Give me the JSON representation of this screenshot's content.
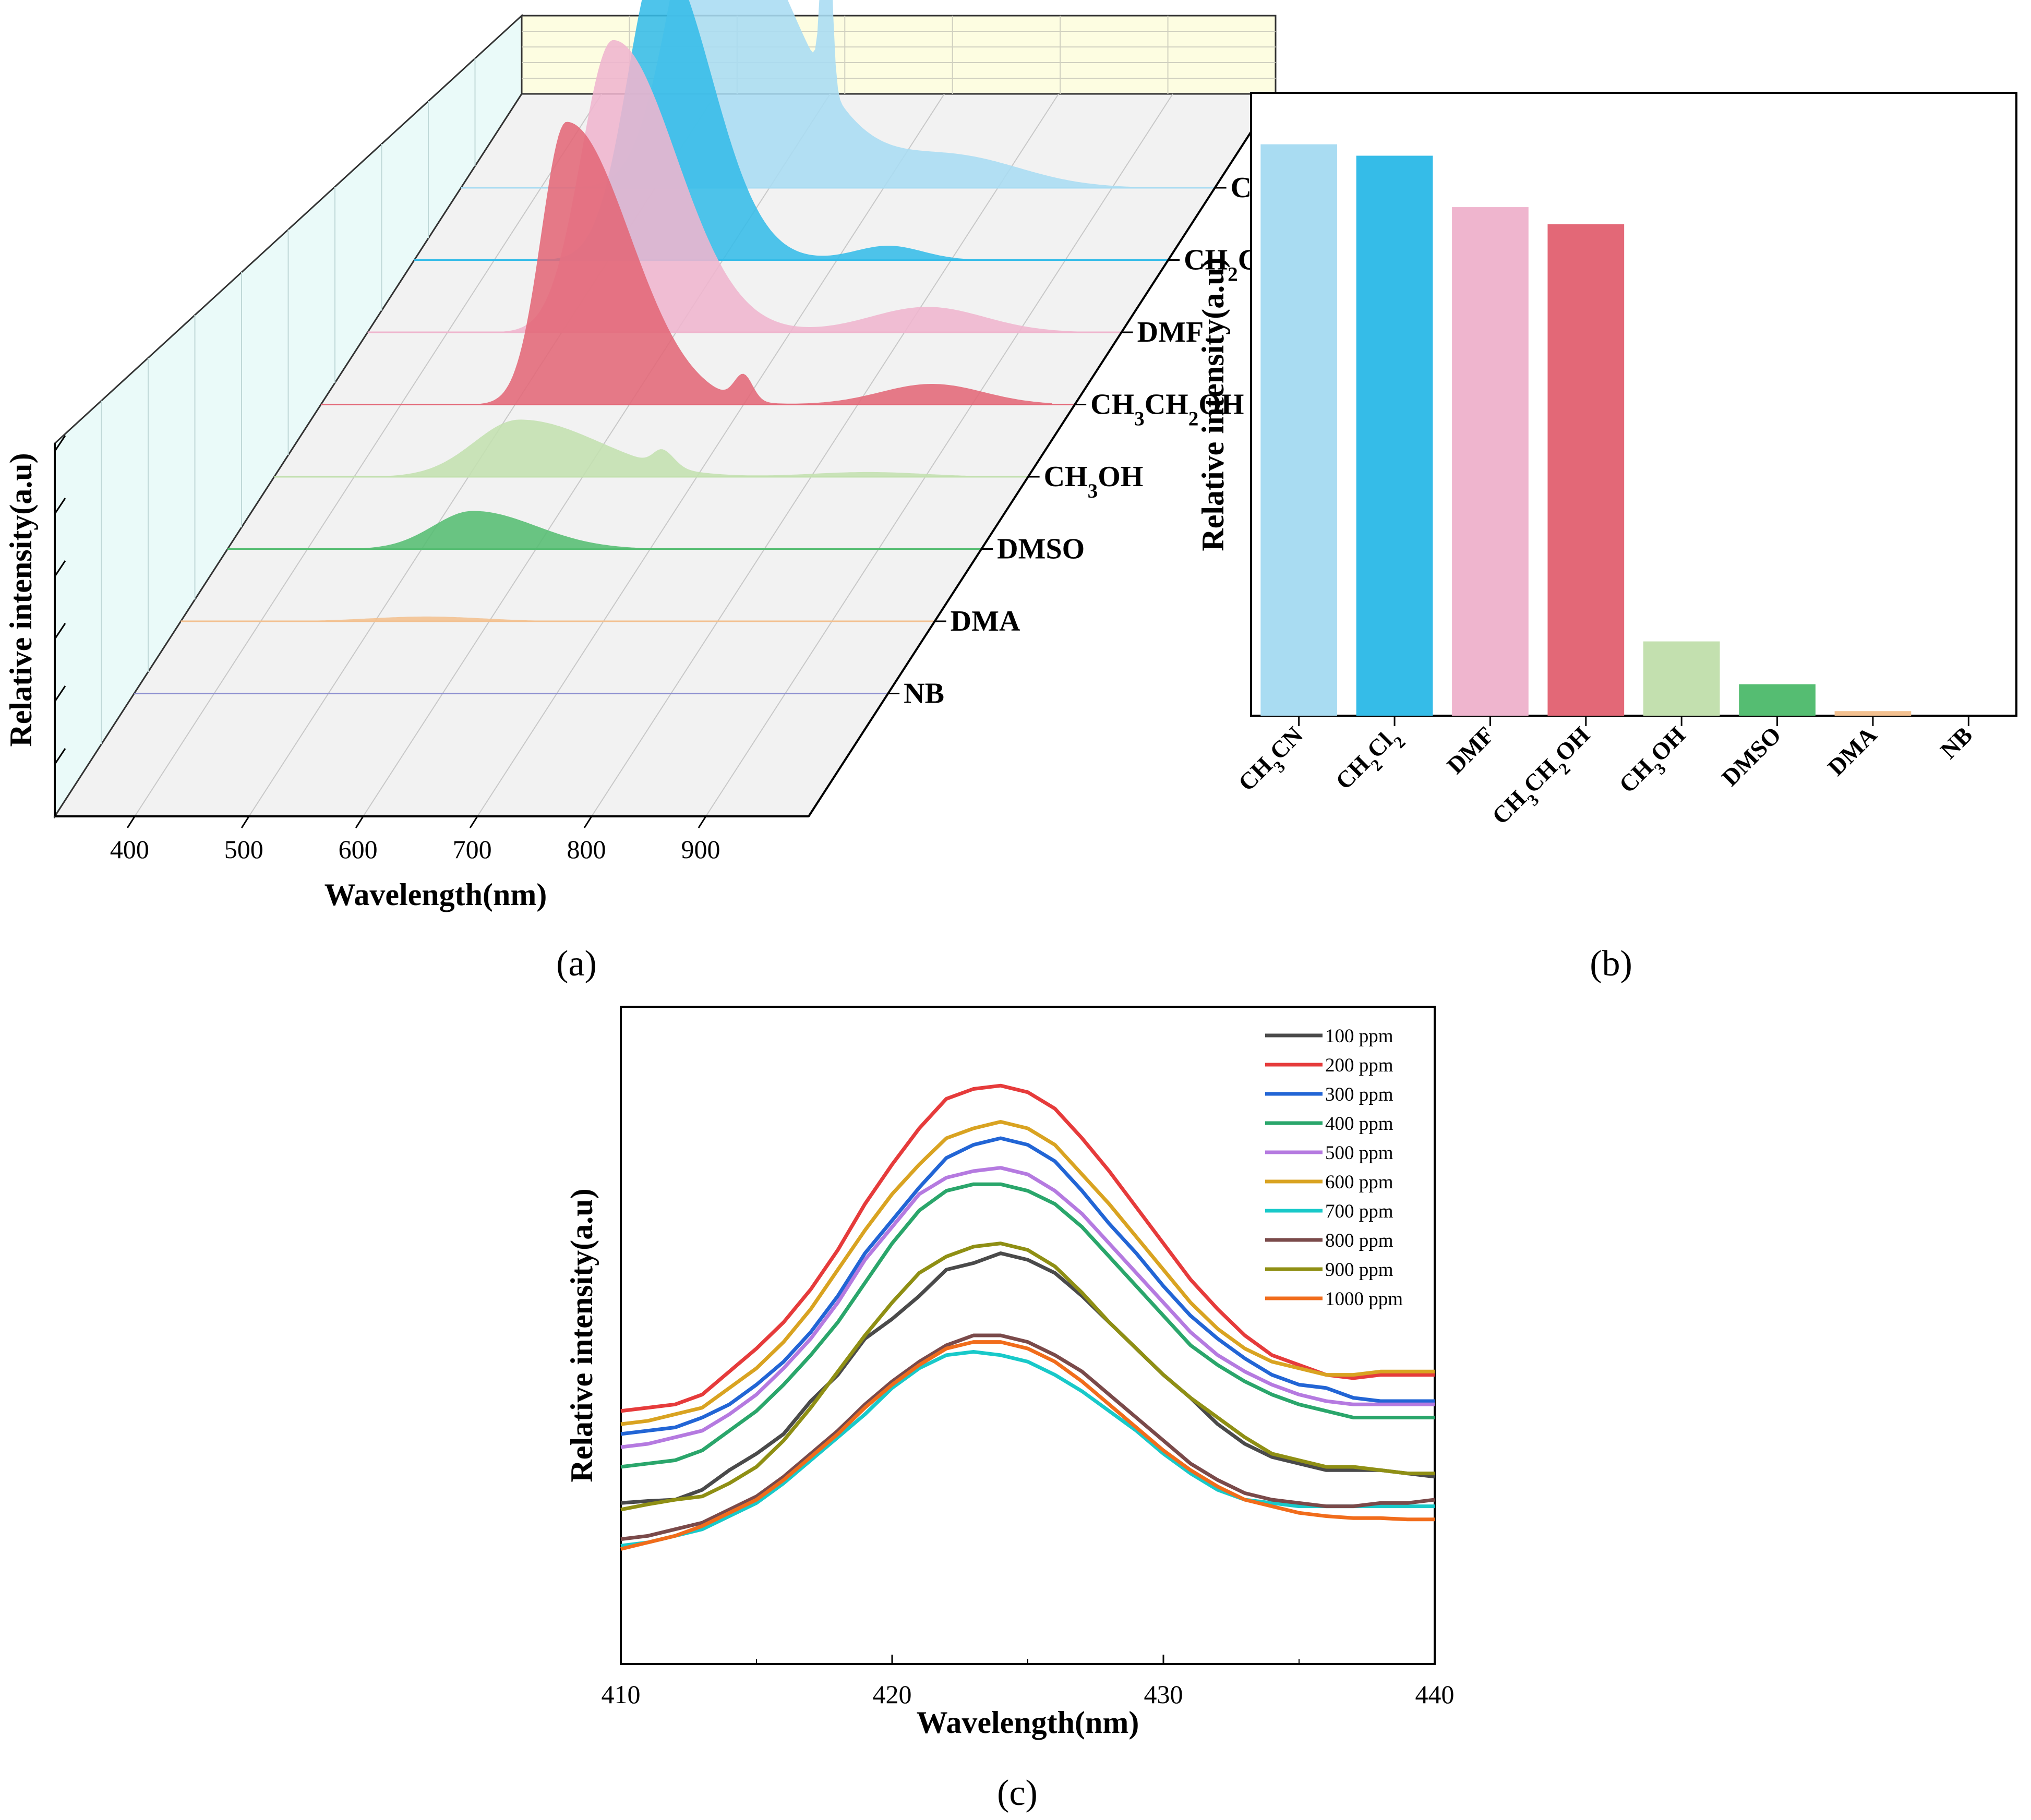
{
  "colors": {
    "CH3CN": "#a9dcf2",
    "CH2Cl2": "#35bce8",
    "DMF": "#efb5ce",
    "CH3CH2OH": "#e36877",
    "CH3OH": "#c3e0af",
    "DMSO": "#55bd72",
    "DMA": "#f3c08f",
    "NB": "#8c8fd0",
    "wall_back": "#fdfde1",
    "wall_side": "#eafaf9"
  },
  "panels": {
    "a": "(a)",
    "b": "(b)",
    "c": "(c)"
  },
  "chart_data": [
    {
      "type": "area",
      "id": "a",
      "xlabel": "Wavelength(nm)",
      "ylabel": "Relative intensity(a.u)",
      "x_ticks": [
        400,
        500,
        600,
        700,
        800,
        900
      ],
      "xlim": [
        330,
        990
      ],
      "series": [
        {
          "name": "CH3CN",
          "label_base": "CH",
          "label_parts": [
            [
              "CH",
              "3",
              "CN"
            ]
          ],
          "peaks": [
            [
              545,
              0.98,
              32,
              70
            ],
            [
              650,
              0.72,
              4,
              4
            ],
            [
              760,
              0.1,
              60,
              60
            ]
          ]
        },
        {
          "name": "CH2Cl2",
          "label_parts": [
            [
              "CH",
              "2",
              "Cl",
              "2"
            ]
          ],
          "peaks": [
            [
              545,
              0.96,
              28,
              45
            ],
            [
              745,
              0.045,
              30,
              30
            ]
          ]
        },
        {
          "name": "DMF",
          "label_parts": [
            [
              "DMF"
            ]
          ],
          "peaks": [
            [
              545,
              0.92,
              28,
              55
            ],
            [
              820,
              0.08,
              50,
              50
            ]
          ]
        },
        {
          "name": "CH3CH2OH",
          "label_parts": [
            [
              "CH",
              "3",
              "CH",
              "2",
              "OH"
            ]
          ],
          "peaks": [
            [
              545,
              0.89,
              22,
              55
            ],
            [
              700,
              0.08,
              8,
              8
            ],
            [
              865,
              0.065,
              45,
              45
            ]
          ]
        },
        {
          "name": "CH3OH",
          "label_parts": [
            [
              "CH",
              "3",
              "OH"
            ]
          ],
          "peaks": [
            [
              545,
              0.18,
              40,
              70
            ],
            [
              670,
              0.05,
              8,
              10
            ],
            [
              850,
              0.015,
              50,
              50
            ]
          ]
        },
        {
          "name": "DMSO",
          "label_parts": [
            [
              "DMSO"
            ]
          ],
          "peaks": [
            [
              545,
              0.12,
              35,
              55
            ]
          ]
        },
        {
          "name": "DMA",
          "label_parts": [
            [
              "DMA"
            ]
          ],
          "peaks": [
            [
              545,
              0.015,
              50,
              50
            ]
          ]
        },
        {
          "name": "NB",
          "label_parts": [
            [
              "NB"
            ]
          ],
          "peaks": []
        }
      ]
    },
    {
      "type": "bar",
      "id": "b",
      "ylabel": "Relative intensity(a.u)",
      "categories": [
        "CH3CN",
        "CH2Cl2",
        "DMF",
        "CH3CH2OH",
        "CH3OH",
        "DMSO",
        "DMA",
        "NB"
      ],
      "category_parts": [
        [
          "CH",
          "3",
          "CN"
        ],
        [
          "CH",
          "2",
          "Cl",
          "2"
        ],
        [
          "DMF"
        ],
        [
          "CH",
          "3",
          "CH",
          "2",
          "OH"
        ],
        [
          "CH",
          "3",
          "OH"
        ],
        [
          "DMSO"
        ],
        [
          "DMA"
        ],
        [
          "NB"
        ]
      ],
      "values": [
        1.0,
        0.98,
        0.89,
        0.86,
        0.13,
        0.055,
        0.008,
        0.0
      ],
      "ylim": [
        0,
        1.09
      ]
    },
    {
      "type": "line",
      "id": "c",
      "xlabel": "Wavelength(nm)",
      "ylabel": "Relative intensity(a.u)",
      "x_ticks": [
        410,
        420,
        430,
        440
      ],
      "xlim": [
        410,
        440
      ],
      "ylim": [
        0,
        1
      ],
      "x": [
        410,
        411,
        412,
        413,
        414,
        415,
        416,
        417,
        418,
        419,
        420,
        421,
        422,
        423,
        424,
        425,
        426,
        427,
        428,
        429,
        430,
        431,
        432,
        433,
        434,
        435,
        436,
        437,
        438,
        439,
        440
      ],
      "series": [
        {
          "name": "100 ppm",
          "color": "#4a4a4a",
          "values": [
            0.245,
            0.248,
            0.25,
            0.265,
            0.295,
            0.32,
            0.35,
            0.4,
            0.44,
            0.495,
            0.525,
            0.56,
            0.6,
            0.61,
            0.625,
            0.615,
            0.595,
            0.56,
            0.52,
            0.48,
            0.44,
            0.405,
            0.365,
            0.335,
            0.315,
            0.305,
            0.295,
            0.295,
            0.295,
            0.29,
            0.285
          ]
        },
        {
          "name": "200 ppm",
          "color": "#e63b3b",
          "values": [
            0.385,
            0.39,
            0.395,
            0.41,
            0.445,
            0.48,
            0.52,
            0.57,
            0.63,
            0.7,
            0.76,
            0.815,
            0.86,
            0.875,
            0.88,
            0.87,
            0.845,
            0.8,
            0.75,
            0.695,
            0.64,
            0.585,
            0.54,
            0.5,
            0.47,
            0.455,
            0.44,
            0.435,
            0.44,
            0.44,
            0.44
          ]
        },
        {
          "name": "300 ppm",
          "color": "#2265d5",
          "values": [
            0.35,
            0.355,
            0.36,
            0.375,
            0.395,
            0.425,
            0.46,
            0.505,
            0.56,
            0.625,
            0.675,
            0.725,
            0.77,
            0.79,
            0.8,
            0.79,
            0.765,
            0.72,
            0.67,
            0.625,
            0.575,
            0.53,
            0.495,
            0.465,
            0.44,
            0.425,
            0.42,
            0.405,
            0.4,
            0.4,
            0.4
          ]
        },
        {
          "name": "400 ppm",
          "color": "#2aa66b",
          "values": [
            0.3,
            0.305,
            0.31,
            0.325,
            0.355,
            0.385,
            0.425,
            0.47,
            0.52,
            0.58,
            0.64,
            0.69,
            0.72,
            0.73,
            0.73,
            0.72,
            0.7,
            0.665,
            0.62,
            0.575,
            0.53,
            0.485,
            0.455,
            0.43,
            0.41,
            0.395,
            0.385,
            0.375,
            0.375,
            0.375,
            0.375
          ]
        },
        {
          "name": "500 ppm",
          "color": "#b57ae0",
          "values": [
            0.33,
            0.335,
            0.345,
            0.355,
            0.38,
            0.41,
            0.45,
            0.495,
            0.55,
            0.615,
            0.665,
            0.715,
            0.74,
            0.75,
            0.755,
            0.745,
            0.72,
            0.685,
            0.64,
            0.595,
            0.55,
            0.505,
            0.47,
            0.445,
            0.425,
            0.41,
            0.4,
            0.395,
            0.395,
            0.395,
            0.395
          ]
        },
        {
          "name": "600 ppm",
          "color": "#d9a321",
          "values": [
            0.365,
            0.37,
            0.38,
            0.39,
            0.42,
            0.45,
            0.49,
            0.54,
            0.6,
            0.66,
            0.715,
            0.76,
            0.8,
            0.815,
            0.825,
            0.815,
            0.79,
            0.745,
            0.7,
            0.65,
            0.6,
            0.55,
            0.51,
            0.48,
            0.46,
            0.45,
            0.44,
            0.44,
            0.445,
            0.445,
            0.445
          ]
        },
        {
          "name": "700 ppm",
          "color": "#18c9c9",
          "values": [
            0.18,
            0.185,
            0.195,
            0.205,
            0.225,
            0.245,
            0.275,
            0.31,
            0.345,
            0.38,
            0.42,
            0.45,
            0.47,
            0.475,
            0.47,
            0.46,
            0.44,
            0.415,
            0.385,
            0.355,
            0.32,
            0.29,
            0.265,
            0.25,
            0.245,
            0.24,
            0.24,
            0.24,
            0.24,
            0.24,
            0.24
          ]
        },
        {
          "name": "800 ppm",
          "color": "#7a4a4a",
          "values": [
            0.19,
            0.195,
            0.205,
            0.215,
            0.235,
            0.255,
            0.285,
            0.32,
            0.355,
            0.395,
            0.43,
            0.46,
            0.485,
            0.5,
            0.5,
            0.49,
            0.47,
            0.445,
            0.41,
            0.375,
            0.34,
            0.305,
            0.28,
            0.26,
            0.25,
            0.245,
            0.24,
            0.24,
            0.245,
            0.245,
            0.25
          ]
        },
        {
          "name": "900 ppm",
          "color": "#8f8f14",
          "values": [
            0.235,
            0.243,
            0.25,
            0.255,
            0.275,
            0.3,
            0.34,
            0.39,
            0.445,
            0.5,
            0.55,
            0.595,
            0.62,
            0.635,
            0.64,
            0.63,
            0.605,
            0.565,
            0.52,
            0.48,
            0.44,
            0.405,
            0.375,
            0.345,
            0.32,
            0.31,
            0.3,
            0.3,
            0.295,
            0.29,
            0.29
          ]
        },
        {
          "name": "1000 ppm",
          "color": "#f16c1b",
          "values": [
            0.175,
            0.185,
            0.195,
            0.21,
            0.23,
            0.25,
            0.28,
            0.315,
            0.35,
            0.39,
            0.425,
            0.455,
            0.48,
            0.49,
            0.49,
            0.48,
            0.46,
            0.43,
            0.395,
            0.36,
            0.325,
            0.295,
            0.27,
            0.25,
            0.24,
            0.23,
            0.225,
            0.222,
            0.222,
            0.22,
            0.22
          ]
        }
      ]
    }
  ]
}
